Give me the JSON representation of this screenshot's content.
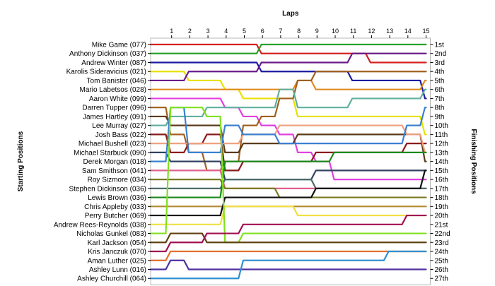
{
  "chart_data": {
    "type": "line",
    "xlabel": "Laps",
    "left_axis_label": "Starting Positions",
    "right_axis_label": "Finishing Positions",
    "laps": [
      1,
      2,
      3,
      4,
      5,
      6,
      7,
      8,
      9,
      10,
      11,
      12,
      13,
      14,
      15
    ],
    "finishing_labels": [
      "1st",
      "2nd",
      "3rd",
      "4th",
      "5th",
      "6th",
      "7th",
      "8th",
      "9th",
      "10th",
      "11th",
      "12th",
      "13th",
      "14th",
      "15th",
      "16th",
      "17th",
      "18th",
      "19th",
      "20th",
      "21st",
      "22nd",
      "23rd",
      "24th",
      "25th",
      "26th",
      "27th"
    ],
    "series": [
      {
        "name": "Mike Game (077)",
        "color": "#d42020",
        "positions": [
          1,
          1,
          1,
          1,
          1,
          1,
          2,
          2,
          2,
          2,
          2,
          2,
          3,
          3,
          3,
          3
        ]
      },
      {
        "name": "Anthony Dickinson (037)",
        "color": "#2aa02a",
        "positions": [
          2,
          2,
          2,
          2,
          2,
          2,
          1,
          1,
          1,
          1,
          1,
          1,
          1,
          1,
          1,
          1
        ]
      },
      {
        "name": "Andrew Winter (087)",
        "color": "#1a1aa0",
        "positions": [
          3,
          3,
          3,
          3,
          3,
          3,
          4,
          4,
          4,
          4,
          4,
          5,
          5,
          5,
          5,
          7
        ]
      },
      {
        "name": "Karolis Sideravicius (021)",
        "color": "#e8e000",
        "positions": [
          4,
          4,
          5,
          5,
          6,
          7,
          7,
          7,
          9,
          9,
          9,
          9,
          9,
          9,
          9,
          11
        ]
      },
      {
        "name": "Tom Banister (046)",
        "color": "#6a1a8a",
        "positions": [
          5,
          5,
          4,
          4,
          4,
          4,
          3,
          3,
          3,
          3,
          3,
          2,
          2,
          2,
          2,
          2
        ]
      },
      {
        "name": "Mario Labetsos (028)",
        "color": "#e08a20",
        "positions": [
          6,
          6,
          6,
          6,
          6,
          6,
          6,
          6,
          5,
          6,
          6,
          6,
          6,
          6,
          6,
          5
        ]
      },
      {
        "name": "Aaron White (099)",
        "color": "#e040e0",
        "positions": [
          7,
          7,
          7,
          7,
          8,
          9,
          10,
          11,
          13,
          14,
          16,
          16,
          16,
          16,
          16,
          16
        ]
      },
      {
        "name": "Darren Tupper (096)",
        "color": "#a06020",
        "positions": [
          8,
          11,
          13,
          15,
          14,
          10,
          9,
          7,
          5,
          4,
          4,
          4,
          4,
          4,
          4,
          4
        ]
      },
      {
        "name": "James Hartley (091)",
        "color": "#5a3a1a",
        "positions": [
          9,
          10,
          10,
          10,
          13,
          12,
          12,
          12,
          11,
          11,
          11,
          11,
          11,
          11,
          11,
          14
        ]
      },
      {
        "name": "Lee Murray (027)",
        "color": "#60b0a0",
        "positions": [
          10,
          9,
          9,
          8,
          8,
          8,
          8,
          6,
          8,
          8,
          8,
          7,
          7,
          7,
          7,
          6
        ]
      },
      {
        "name": "Josh Bass (022)",
        "color": "#8a1a1a",
        "positions": [
          11,
          13,
          12,
          11,
          15,
          14,
          14,
          14,
          14,
          13,
          13,
          13,
          13,
          13,
          12,
          12
        ]
      },
      {
        "name": "Michael Bushell (023)",
        "color": "#f0a080",
        "positions": [
          12,
          12,
          12,
          12,
          12,
          11,
          11,
          10,
          10,
          10,
          10,
          10,
          10,
          10,
          11,
          13
        ]
      },
      {
        "name": "Michael Starbuck (090)",
        "color": "#304060",
        "positions": [
          13,
          14,
          14,
          14,
          16,
          16,
          16,
          16,
          16,
          15,
          15,
          15,
          15,
          15,
          15,
          15
        ]
      },
      {
        "name": "Derek Morgan (018)",
        "color": "#3a80d0",
        "positions": [
          14,
          8,
          13,
          13,
          10,
          11,
          11,
          12,
          12,
          12,
          12,
          12,
          12,
          12,
          10,
          8
        ]
      },
      {
        "name": "Sam Smithson (041)",
        "color": "#e06090",
        "positions": [
          15,
          15,
          15,
          15,
          17,
          17,
          17,
          17,
          17,
          17,
          17,
          17,
          17,
          17,
          17,
          17
        ]
      },
      {
        "name": "Roy Sizmore (034)",
        "color": "#7a7a20",
        "positions": [
          16,
          16,
          16,
          16,
          17,
          17,
          17,
          18,
          18,
          18,
          18,
          18,
          18,
          18,
          18,
          18
        ]
      },
      {
        "name": "Stephen Dickinson (036)",
        "color": "#4a6a6a",
        "positions": [
          17,
          17,
          17,
          17,
          16,
          16,
          16,
          16,
          16,
          17,
          17,
          17,
          17,
          17,
          17,
          17
        ]
      },
      {
        "name": "Lewis Brown (036)",
        "color": "#1a8a1a",
        "positions": [
          18,
          18,
          18,
          18,
          14,
          14,
          14,
          14,
          14,
          14,
          13,
          13,
          13,
          13,
          13,
          13
        ]
      },
      {
        "name": "Chris Appleby (033)",
        "color": "#b08a30",
        "positions": [
          19,
          19,
          19,
          19,
          19,
          19,
          19,
          19,
          19,
          19,
          19,
          19,
          19,
          19,
          19,
          19
        ]
      },
      {
        "name": "Perry Butcher (069)",
        "color": "#101010",
        "positions": [
          20,
          20,
          20,
          20,
          18,
          18,
          18,
          18,
          18,
          17,
          17,
          17,
          17,
          17,
          17,
          15
        ]
      },
      {
        "name": "Andrew Rees-Reynolds (038)",
        "color": "#f0e040",
        "positions": [
          21,
          21,
          21,
          21,
          19,
          19,
          19,
          19,
          20,
          20,
          20,
          20,
          20,
          20,
          20,
          20
        ]
      },
      {
        "name": "Nicholas Gunkel (083)",
        "color": "#80e020",
        "positions": [
          22,
          8,
          8,
          9,
          23,
          22,
          22,
          22,
          22,
          22,
          22,
          22,
          22,
          22,
          22,
          22
        ]
      },
      {
        "name": "Karl Jackson (054)",
        "color": "#604010",
        "positions": [
          23,
          22,
          22,
          23,
          23,
          23,
          23,
          23,
          23,
          23,
          23,
          23,
          23,
          23,
          23,
          23
        ]
      },
      {
        "name": "Kris Janczuk (070)",
        "color": "#a01050",
        "positions": [
          24,
          23,
          23,
          22,
          22,
          21,
          21,
          21,
          21,
          21,
          21,
          21,
          21,
          21,
          20,
          20
        ]
      },
      {
        "name": "Aman Luther (025)",
        "color": "#e07030",
        "positions": [
          25,
          24,
          24,
          24,
          24,
          24,
          24,
          24,
          24,
          24,
          24,
          24,
          24,
          24,
          24,
          24
        ]
      },
      {
        "name": "Ashley Lunn (016)",
        "color": "#5030a0",
        "positions": [
          26,
          25,
          26,
          26,
          26,
          26,
          26,
          26,
          26,
          26,
          26,
          26,
          26,
          26,
          26,
          26
        ]
      },
      {
        "name": "Ashley Churchill (064)",
        "color": "#3090d0",
        "positions": [
          27,
          27,
          27,
          27,
          27,
          25,
          25,
          25,
          25,
          25,
          25,
          25,
          25,
          24,
          24,
          24
        ]
      }
    ]
  }
}
